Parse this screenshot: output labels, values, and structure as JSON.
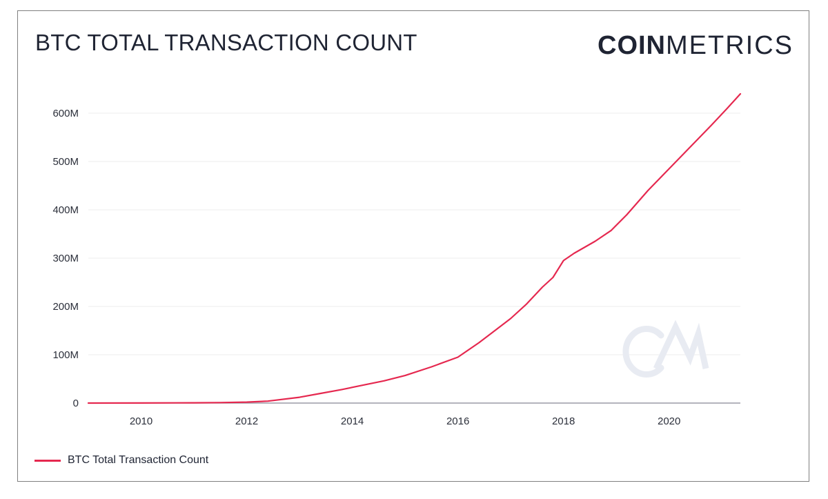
{
  "header": {
    "title": "BTC TOTAL TRANSACTION COUNT",
    "logo_bold": "COIN",
    "logo_light": "METRICS"
  },
  "watermark": "CM",
  "colors": {
    "line": "#e5284f",
    "grid": "#eeeeee",
    "axis": "#9a9aa6",
    "text": "#1f2433",
    "watermark": "#e8ebf2"
  },
  "legend": {
    "items": [
      {
        "label": "BTC Total Transaction Count",
        "color": "#e5284f"
      }
    ]
  },
  "chart_data": {
    "type": "line",
    "title": "BTC TOTAL TRANSACTION COUNT",
    "xlabel": "",
    "ylabel": "",
    "xlim": [
      2009.0,
      2021.35
    ],
    "ylim": [
      0,
      630000000
    ],
    "x_ticks": [
      2010,
      2012,
      2014,
      2016,
      2018,
      2020
    ],
    "x_tick_labels": [
      "2010",
      "2012",
      "2014",
      "2016",
      "2018",
      "2020"
    ],
    "y_ticks": [
      0,
      100000000,
      200000000,
      300000000,
      400000000,
      500000000,
      600000000
    ],
    "y_tick_labels": [
      "0",
      "100M",
      "200M",
      "300M",
      "400M",
      "500M",
      "600M"
    ],
    "grid": true,
    "legend_position": "bottom-left",
    "series": [
      {
        "name": "BTC Total Transaction Count",
        "x": [
          2009.0,
          2010.0,
          2011.0,
          2011.5,
          2012.0,
          2012.4,
          2013.0,
          2013.4,
          2013.8,
          2014.2,
          2014.6,
          2015.0,
          2015.5,
          2016.0,
          2016.4,
          2016.7,
          2017.0,
          2017.3,
          2017.6,
          2017.8,
          2018.0,
          2018.2,
          2018.6,
          2018.9,
          2019.2,
          2019.6,
          2020.0,
          2020.4,
          2020.8,
          2021.1,
          2021.35
        ],
        "values": [
          0,
          100000,
          500000,
          1000000,
          2000000,
          4000000,
          12000000,
          20000000,
          28000000,
          37000000,
          46000000,
          57000000,
          75000000,
          95000000,
          125000000,
          150000000,
          175000000,
          205000000,
          240000000,
          260000000,
          295000000,
          310000000,
          335000000,
          357000000,
          390000000,
          440000000,
          485000000,
          530000000,
          575000000,
          610000000,
          640000000
        ]
      }
    ]
  }
}
